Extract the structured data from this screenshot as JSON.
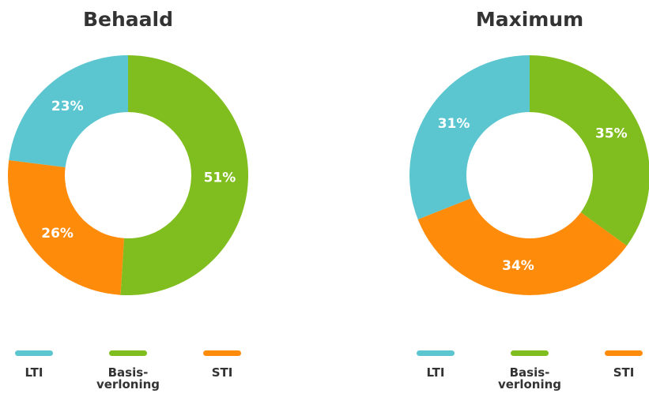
{
  "chart_data": [
    {
      "type": "donut",
      "title": "Behaald",
      "categories": [
        "LTI",
        "Basis-verloning",
        "STI"
      ],
      "values": [
        23,
        51,
        26
      ],
      "value_labels": [
        "23%",
        "51%",
        "26%"
      ],
      "colors": [
        "#5bc6d0",
        "#80bd1e",
        "#ff8b0b"
      ]
    },
    {
      "type": "donut",
      "title": "Maximum",
      "categories": [
        "LTI",
        "Basis-verloning",
        "STI"
      ],
      "values": [
        31,
        35,
        34
      ],
      "value_labels": [
        "31%",
        "35%",
        "34%"
      ],
      "colors": [
        "#5bc6d0",
        "#80bd1e",
        "#ff8b0b"
      ]
    }
  ]
}
